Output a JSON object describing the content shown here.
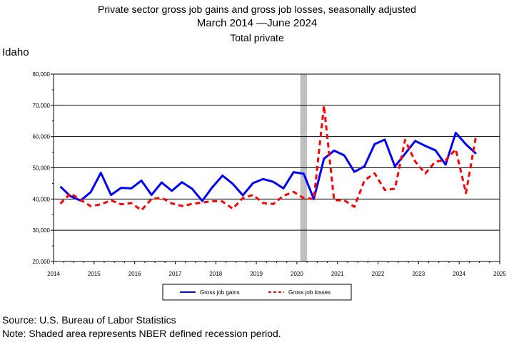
{
  "header": {
    "title": "Private sector gross job gains and gross job losses, seasonally adjusted",
    "date_from": "March 2014",
    "date_to": "June 2024",
    "subtitle": "Total private",
    "region": "Idaho"
  },
  "footer": {
    "source": "Source: U.S. Bureau of Labor Statistics",
    "note": "Note: Shaded area represents NBER defined recession period."
  },
  "colors": {
    "gains": "#0000ff",
    "losses": "#ff0000",
    "recession": "#c0c0c0"
  },
  "chart_data": {
    "type": "line",
    "title": "Private sector gross job gains and gross job losses, seasonally adjusted",
    "ylim": [
      20000,
      80000
    ],
    "yticks": [
      "20,000",
      "30,000",
      "40,000",
      "50,000",
      "60,000",
      "70,000",
      "80,000"
    ],
    "xlim": [
      2014,
      2025
    ],
    "xticks": [
      "2014",
      "2015",
      "2016",
      "2017",
      "2018",
      "2019",
      "2020",
      "2021",
      "2022",
      "2023",
      "2024",
      "2025"
    ],
    "grid": true,
    "legend_position": "bottom",
    "recession": {
      "start": "2020-02",
      "end": "2020-04"
    },
    "x": [
      "2014-03",
      "2014-06",
      "2014-09",
      "2014-12",
      "2015-03",
      "2015-06",
      "2015-09",
      "2015-12",
      "2016-03",
      "2016-06",
      "2016-09",
      "2016-12",
      "2017-03",
      "2017-06",
      "2017-09",
      "2017-12",
      "2018-03",
      "2018-06",
      "2018-09",
      "2018-12",
      "2019-03",
      "2019-06",
      "2019-09",
      "2019-12",
      "2020-03",
      "2020-06",
      "2020-09",
      "2020-12",
      "2021-03",
      "2021-06",
      "2021-09",
      "2021-12",
      "2022-03",
      "2022-06",
      "2022-09",
      "2022-12",
      "2023-03",
      "2023-06",
      "2023-09",
      "2023-12",
      "2024-03",
      "2024-06"
    ],
    "series": [
      {
        "name": "Gross job gains",
        "style": "solid",
        "values": [
          44000,
          40900,
          39500,
          42200,
          48400,
          41300,
          43600,
          43400,
          45900,
          41300,
          45300,
          42600,
          45400,
          43300,
          39400,
          43800,
          47500,
          44900,
          41200,
          45100,
          46400,
          45500,
          43400,
          48600,
          48100,
          40000,
          52900,
          55500,
          54000,
          48700,
          50500,
          57600,
          59000,
          50400,
          54500,
          58600,
          57000,
          55600,
          51000,
          61200,
          57500,
          54500
        ]
      },
      {
        "name": "Gross job losses",
        "style": "dashed",
        "values": [
          38500,
          41800,
          39700,
          37700,
          38300,
          39600,
          38300,
          38700,
          36400,
          40000,
          40400,
          38600,
          37800,
          38400,
          38900,
          39300,
          39200,
          36900,
          40300,
          41300,
          38700,
          38400,
          41000,
          42300,
          40300,
          40000,
          69900,
          39600,
          39600,
          37500,
          46000,
          48200,
          42900,
          43300,
          58900,
          52000,
          48200,
          52000,
          52400,
          55900,
          41900,
          60400
        ]
      }
    ]
  }
}
